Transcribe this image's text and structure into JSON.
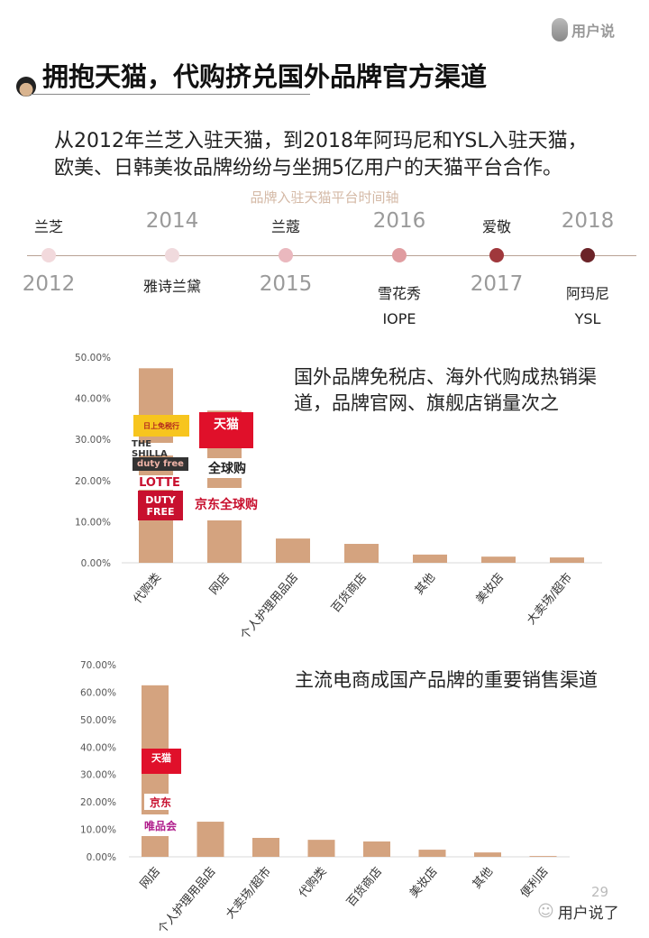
{
  "brand": {
    "name": "用户说"
  },
  "header": {
    "title": "拥抱天猫，代购挤兑国外品牌官方渠道"
  },
  "intro": [
    "从2012年兰芝入驻天猫，到2018年阿玛尼和YSL入驻天猫，",
    "欧美、日韩美妆品牌纷纷与坐拥5亿用户的天猫平台合作。"
  ],
  "timeline": {
    "title": "品牌入驻天猫平台时间轴",
    "events": [
      {
        "year": "2012",
        "brands": [
          "兰芝"
        ],
        "color": "#f2d9dc"
      },
      {
        "year": "2014",
        "brands": [
          "雅诗兰黛"
        ],
        "color": "#f0dadd"
      },
      {
        "year": "2015",
        "brands": [
          "兰蔻"
        ],
        "color": "#eab8be"
      },
      {
        "year": "2016",
        "brands": [
          "雪花秀",
          "IOPE"
        ],
        "color": "#e09ca0"
      },
      {
        "year": "2017",
        "brands": [
          "爱敬"
        ],
        "color": "#a0383c"
      },
      {
        "year": "2018",
        "brands": [
          "阿玛尼",
          "YSL"
        ],
        "color": "#6b2328"
      }
    ]
  },
  "chart_data": [
    {
      "type": "bar",
      "categories": [
        "代购类",
        "网店",
        "个人护理用品店",
        "百货商店",
        "其他",
        "美妆店",
        "大卖场/超市"
      ],
      "values": [
        47.3,
        37.0,
        5.9,
        4.6,
        2.0,
        1.5,
        1.3
      ],
      "ylim": [
        0,
        50
      ],
      "yticks": [
        "0.00%",
        "10.00%",
        "20.00%",
        "30.00%",
        "40.00%",
        "50.00%"
      ],
      "bar_color": "#d4a37f",
      "grid": false,
      "annotation": "国外品牌免税店、海外代购成热销渠道，品牌官网、旗舰店销量次之",
      "logos": [
        "日上免税行",
        "THE SHILLA",
        "duty free",
        "LOTTE",
        "DUTY FREE",
        "天猫",
        "全球购",
        "京东全球购"
      ]
    },
    {
      "type": "bar",
      "categories": [
        "网店",
        "个人护理用品店",
        "大卖场/超市",
        "代购类",
        "百货商店",
        "美妆店",
        "其他",
        "便利店"
      ],
      "values": [
        62.5,
        12.8,
        6.9,
        6.2,
        5.6,
        2.6,
        1.6,
        0.3
      ],
      "ylim": [
        0,
        70
      ],
      "yticks": [
        "0.00%",
        "10.00%",
        "20.00%",
        "30.00%",
        "40.00%",
        "50.00%",
        "60.00%",
        "70.00%"
      ],
      "bar_color": "#d4a37f",
      "grid": false,
      "annotation": "主流电商成国产品牌的重要销售渠道",
      "logos": [
        "天猫",
        "京东",
        "唯品会"
      ]
    }
  ],
  "footer": {
    "page": "29",
    "account": "用户说了"
  }
}
